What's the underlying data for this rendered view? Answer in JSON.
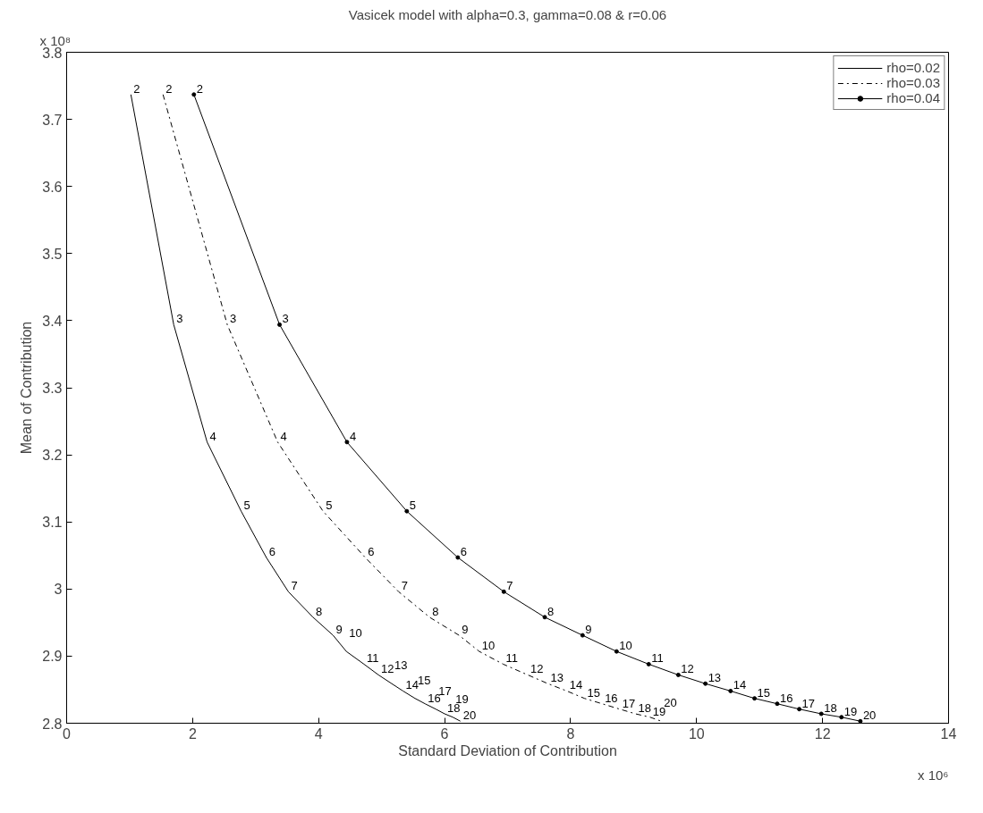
{
  "chart_data": {
    "type": "line",
    "title": "Vasicek model with alpha=0.3, gamma=0.08 & r=0.06",
    "xlabel": "Standard Deviation of Contribution",
    "ylabel": "Mean of Contribution",
    "annotations": [
      "x 10⁸",
      "x 10⁶",
      {
        "text": "2",
        "x": 1.02,
        "y": 3.737
      },
      {
        "text": "3",
        "x": 1.7,
        "y": 3.394
      },
      {
        "text": "4",
        "x": 2.23,
        "y": 3.219
      },
      {
        "text": "5",
        "x": 2.77,
        "y": 3.116
      },
      {
        "text": "6",
        "x": 3.17,
        "y": 3.047
      },
      {
        "text": "7",
        "x": 3.52,
        "y": 2.996
      },
      {
        "text": "8",
        "x": 3.91,
        "y": 2.958
      },
      {
        "text": "9",
        "x": 4.23,
        "y": 2.931
      },
      {
        "text": "10",
        "x": 4.44,
        "y": 2.907
      },
      {
        "text": "11",
        "x": 4.72,
        "y": 2.888
      },
      {
        "text": "12",
        "x": 4.95,
        "y": 2.872
      },
      {
        "text": "13",
        "x": 5.16,
        "y": 2.859
      },
      {
        "text": "14",
        "x": 5.34,
        "y": 2.848
      },
      {
        "text": "15",
        "x": 5.53,
        "y": 2.837
      },
      {
        "text": "16",
        "x": 5.69,
        "y": 2.829
      },
      {
        "text": "17",
        "x": 5.86,
        "y": 2.821
      },
      {
        "text": "18",
        "x": 6.0,
        "y": 2.814
      },
      {
        "text": "19",
        "x": 6.13,
        "y": 2.809
      },
      {
        "text": "20",
        "x": 6.25,
        "y": 2.803
      },
      {
        "text": "2",
        "x": 1.53,
        "y": 3.737
      },
      {
        "text": "3",
        "x": 2.55,
        "y": 3.394
      },
      {
        "text": "4",
        "x": 3.35,
        "y": 3.219
      },
      {
        "text": "5",
        "x": 4.07,
        "y": 3.116
      },
      {
        "text": "6",
        "x": 4.74,
        "y": 3.047
      },
      {
        "text": "7",
        "x": 5.27,
        "y": 2.996
      },
      {
        "text": "8",
        "x": 5.76,
        "y": 2.958
      },
      {
        "text": "9",
        "x": 6.23,
        "y": 2.931
      },
      {
        "text": "10",
        "x": 6.55,
        "y": 2.907
      },
      {
        "text": "11",
        "x": 6.93,
        "y": 2.888
      },
      {
        "text": "12",
        "x": 7.32,
        "y": 2.872
      },
      {
        "text": "13",
        "x": 7.64,
        "y": 2.859
      },
      {
        "text": "14",
        "x": 7.94,
        "y": 2.848
      },
      {
        "text": "15",
        "x": 8.22,
        "y": 2.837
      },
      {
        "text": "16",
        "x": 8.5,
        "y": 2.829
      },
      {
        "text": "17",
        "x": 8.78,
        "y": 2.821
      },
      {
        "text": "18",
        "x": 9.03,
        "y": 2.814
      },
      {
        "text": "19",
        "x": 9.26,
        "y": 2.809
      },
      {
        "text": "20",
        "x": 9.44,
        "y": 2.803
      },
      {
        "text": "2",
        "x": 2.02,
        "y": 3.737
      },
      {
        "text": "3",
        "x": 3.38,
        "y": 3.394
      },
      {
        "text": "4",
        "x": 4.45,
        "y": 3.219
      },
      {
        "text": "5",
        "x": 5.4,
        "y": 3.116
      },
      {
        "text": "6",
        "x": 6.21,
        "y": 3.047
      },
      {
        "text": "7",
        "x": 6.94,
        "y": 2.996
      },
      {
        "text": "8",
        "x": 7.59,
        "y": 2.958
      },
      {
        "text": "9",
        "x": 8.19,
        "y": 2.931
      },
      {
        "text": "10",
        "x": 8.73,
        "y": 2.907
      },
      {
        "text": "11",
        "x": 9.24,
        "y": 2.888
      },
      {
        "text": "12",
        "x": 9.71,
        "y": 2.872
      },
      {
        "text": "13",
        "x": 10.14,
        "y": 2.859
      },
      {
        "text": "14",
        "x": 10.54,
        "y": 2.848
      },
      {
        "text": "15",
        "x": 10.92,
        "y": 2.837
      },
      {
        "text": "16",
        "x": 11.28,
        "y": 2.829
      },
      {
        "text": "17",
        "x": 11.63,
        "y": 2.821
      },
      {
        "text": "18",
        "x": 11.98,
        "y": 2.814
      },
      {
        "text": "19",
        "x": 12.3,
        "y": 2.809
      },
      {
        "text": "20",
        "x": 12.6,
        "y": 2.803
      }
    ],
    "series": [
      {
        "name": "rho=0.02",
        "color": "#000000",
        "line_style": "solid",
        "marker": "none",
        "x": [
          1.02,
          1.7,
          2.23,
          2.77,
          3.17,
          3.52,
          3.91,
          4.23,
          4.44,
          4.72,
          4.95,
          5.16,
          5.34,
          5.53,
          5.69,
          5.86,
          6.0,
          6.13,
          6.25
        ],
        "values": [
          3.737,
          3.394,
          3.219,
          3.116,
          3.047,
          2.996,
          2.958,
          2.931,
          2.907,
          2.888,
          2.872,
          2.859,
          2.848,
          2.837,
          2.829,
          2.821,
          2.814,
          2.809,
          2.803
        ]
      },
      {
        "name": "rho=0.03",
        "color": "#000000",
        "line_style": "dashdot",
        "marker": "none",
        "x": [
          1.53,
          2.55,
          3.35,
          4.07,
          4.74,
          5.27,
          5.76,
          6.23,
          6.55,
          6.93,
          7.32,
          7.64,
          7.94,
          8.22,
          8.5,
          8.78,
          9.03,
          9.26,
          9.44
        ],
        "values": [
          3.737,
          3.394,
          3.219,
          3.116,
          3.047,
          2.996,
          2.958,
          2.931,
          2.907,
          2.888,
          2.872,
          2.859,
          2.848,
          2.837,
          2.829,
          2.821,
          2.814,
          2.809,
          2.803
        ]
      },
      {
        "name": "rho=0.04",
        "color": "#000000",
        "line_style": "solid",
        "marker": "circle",
        "x": [
          2.02,
          3.38,
          4.45,
          5.4,
          6.21,
          6.94,
          7.59,
          8.19,
          8.73,
          9.24,
          9.71,
          10.14,
          10.54,
          10.92,
          11.28,
          11.63,
          11.98,
          12.3,
          12.6
        ],
        "values": [
          3.737,
          3.394,
          3.219,
          3.116,
          3.047,
          2.996,
          2.958,
          2.931,
          2.907,
          2.888,
          2.872,
          2.859,
          2.848,
          2.837,
          2.829,
          2.821,
          2.814,
          2.809,
          2.803
        ]
      }
    ],
    "xlim": [
      0,
      14
    ],
    "xticks": [
      0,
      2,
      4,
      6,
      8,
      10,
      12,
      14
    ],
    "ylim": [
      2.8,
      3.8
    ],
    "yticks": [
      2.8,
      2.9,
      {
        "value": 3.0,
        "label": "3"
      },
      3.1,
      3.2,
      3.3,
      3.4,
      3.5,
      3.6,
      3.7,
      3.8
    ],
    "grid": false,
    "legend": "top right"
  }
}
